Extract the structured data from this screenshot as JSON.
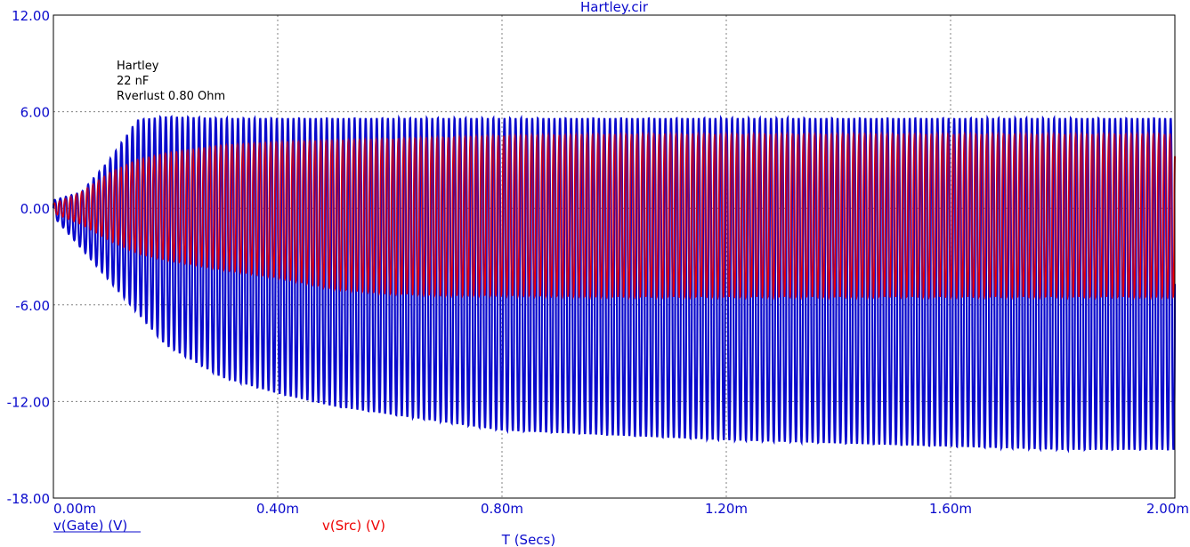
{
  "chart_data": {
    "type": "line",
    "title": "Hartley.cir",
    "annotations": [
      "Hartley",
      "22 nF",
      "Rverlust 0.80 Ohm"
    ],
    "xlabel": "T (Secs)",
    "ylabel": "",
    "xlim": [
      0,
      2.0
    ],
    "x_unit": "ms",
    "ylim": [
      -18,
      12
    ],
    "grid": true,
    "grid_style": "dotted",
    "xticks": [
      {
        "value": 0.0,
        "label": "0.00m"
      },
      {
        "value": 0.4,
        "label": "0.40m"
      },
      {
        "value": 0.8,
        "label": "0.80m"
      },
      {
        "value": 1.2,
        "label": "1.20m"
      },
      {
        "value": 1.6,
        "label": "1.60m"
      },
      {
        "value": 2.0,
        "label": "2.00m"
      }
    ],
    "yticks": [
      {
        "value": 12,
        "label": "12.00"
      },
      {
        "value": 6,
        "label": "6.00"
      },
      {
        "value": 0,
        "label": "0.00"
      },
      {
        "value": -6,
        "label": "-6.00"
      },
      {
        "value": -12,
        "label": "-12.00"
      },
      {
        "value": -18,
        "label": "-18.00"
      }
    ],
    "cycles": 202,
    "series": [
      {
        "name": "v(Gate) (V)",
        "color": "#0a0acc",
        "envelope_x": [
          0,
          0.05,
          0.1,
          0.15,
          0.2,
          0.3,
          0.4,
          0.5,
          0.6,
          0.7,
          0.8,
          1.0,
          1.2,
          1.4,
          1.6,
          1.8,
          2.0
        ],
        "upper": [
          0.5,
          1.0,
          3.0,
          5.5,
          5.7,
          5.6,
          5.6,
          5.6,
          5.6,
          5.6,
          5.6,
          5.6,
          5.6,
          5.6,
          5.6,
          5.6,
          5.6
        ],
        "lower": [
          -0.5,
          -2.5,
          -4.5,
          -6.5,
          -8.5,
          -10.5,
          -11.5,
          -12.3,
          -12.8,
          -13.3,
          -13.8,
          -14.1,
          -14.4,
          -14.6,
          -14.8,
          -15.0,
          -15.0
        ]
      },
      {
        "name": "v(Src) (V)",
        "color": "#ee0000",
        "envelope_x": [
          0,
          0.05,
          0.1,
          0.15,
          0.2,
          0.3,
          0.4,
          0.5,
          0.6,
          0.7,
          0.8,
          1.0,
          1.2,
          1.4,
          1.6,
          1.8,
          2.0
        ],
        "upper": [
          0.3,
          1.0,
          2.2,
          3.0,
          3.4,
          3.9,
          4.1,
          4.2,
          4.3,
          4.4,
          4.5,
          4.6,
          4.6,
          4.6,
          4.6,
          4.6,
          4.6
        ],
        "lower": [
          -0.3,
          -1.0,
          -2.0,
          -2.8,
          -3.2,
          -3.8,
          -4.3,
          -5.0,
          -5.3,
          -5.4,
          -5.4,
          -5.5,
          -5.5,
          -5.5,
          -5.5,
          -5.5,
          -5.5
        ]
      }
    ]
  }
}
